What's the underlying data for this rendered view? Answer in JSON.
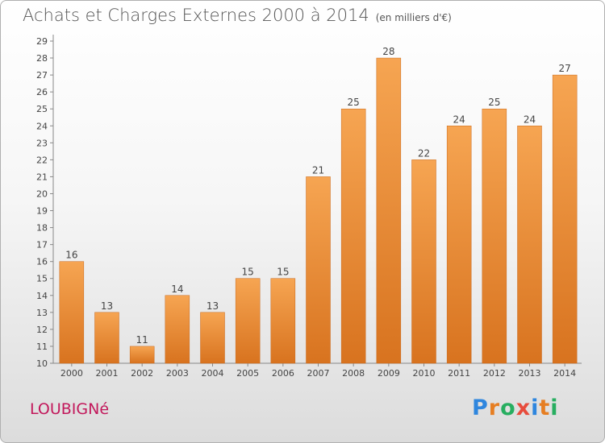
{
  "header": {
    "title": "Achats et Charges Externes 2000 à 2014",
    "unit": "(en milliers d'€)"
  },
  "location": "LOUBIGNé",
  "logo": {
    "letters": [
      "P",
      "r",
      "o",
      "x",
      "i",
      "t",
      "i"
    ],
    "colors": [
      "#2e86de",
      "#e67e22",
      "#27ae60",
      "#e74c3c",
      "#2e86de",
      "#e67e22",
      "#27ae60"
    ]
  },
  "chart_data": {
    "type": "bar",
    "title": "Achats et Charges Externes 2000 à 2014",
    "categories": [
      "2000",
      "2001",
      "2002",
      "2003",
      "2004",
      "2005",
      "2006",
      "2007",
      "2008",
      "2009",
      "2010",
      "2011",
      "2012",
      "2013",
      "2014"
    ],
    "values": [
      16,
      13,
      11,
      14,
      13,
      15,
      15,
      21,
      25,
      28,
      22,
      24,
      25,
      24,
      27
    ],
    "ylim": [
      10,
      29
    ],
    "yticks": [
      10,
      11,
      12,
      13,
      14,
      15,
      16,
      17,
      18,
      19,
      20,
      21,
      22,
      23,
      24,
      25,
      26,
      27,
      28,
      29
    ],
    "grid": "none",
    "bar_color": "#f0913a"
  }
}
